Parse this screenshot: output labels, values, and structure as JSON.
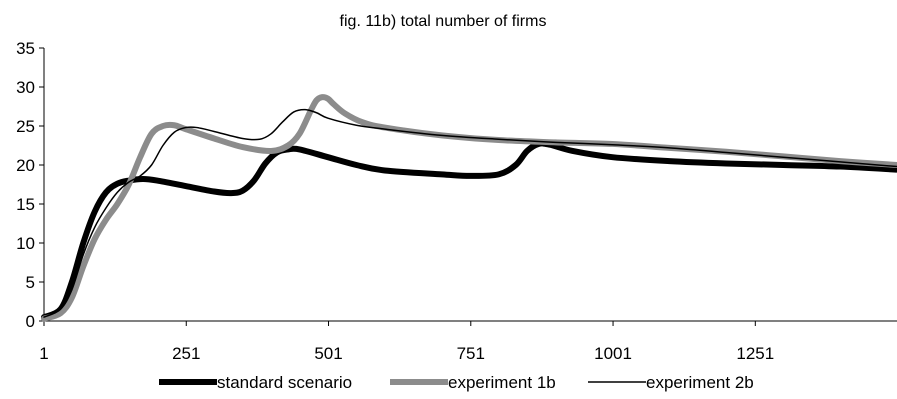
{
  "chart_data": {
    "type": "line",
    "title": "fig. 11b) total number of firms",
    "xlabel": "",
    "ylabel": "",
    "xlim": [
      1,
      1500
    ],
    "ylim": [
      0,
      35
    ],
    "x_ticks": [
      1,
      251,
      501,
      751,
      1001,
      1251
    ],
    "y_ticks": [
      0,
      5,
      10,
      15,
      20,
      25,
      30,
      35
    ],
    "grid": false,
    "legend_position": "bottom",
    "series": [
      {
        "name": "standard scenario",
        "color": "#000000",
        "x": [
          1,
          30,
          50,
          70,
          90,
          110,
          130,
          150,
          175,
          200,
          250,
          300,
          330,
          350,
          370,
          390,
          410,
          430,
          450,
          500,
          550,
          600,
          700,
          750,
          800,
          830,
          850,
          870,
          890,
          930,
          1000,
          1100,
          1200,
          1300,
          1400,
          1500
        ],
        "values": [
          0.5,
          1.5,
          5,
          10,
          14,
          16.5,
          17.6,
          18,
          18.2,
          18,
          17.3,
          16.6,
          16.4,
          16.7,
          18,
          20.2,
          21.6,
          22,
          22,
          21,
          20,
          19.3,
          18.8,
          18.6,
          18.8,
          20,
          21.8,
          22.7,
          22.6,
          21.8,
          21,
          20.5,
          20.2,
          20,
          19.8,
          19.4
        ]
      },
      {
        "name": "experiment 1b",
        "color": "#8c8c8c",
        "x": [
          1,
          30,
          50,
          70,
          90,
          110,
          130,
          150,
          170,
          190,
          210,
          230,
          250,
          300,
          350,
          400,
          430,
          450,
          470,
          480,
          490,
          500,
          510,
          530,
          560,
          600,
          700,
          800,
          900,
          1000,
          1100,
          1200,
          1300,
          1400,
          1500
        ],
        "values": [
          0.3,
          1,
          3,
          7,
          10.5,
          13,
          15,
          17.5,
          21,
          24,
          25,
          25.1,
          24.6,
          23.4,
          22.3,
          21.8,
          22.5,
          24,
          27,
          28.3,
          28.7,
          28.5,
          27.8,
          26.6,
          25.5,
          24.8,
          23.8,
          23.2,
          22.9,
          22.7,
          22.2,
          21.7,
          21.1,
          20.5,
          20
        ]
      },
      {
        "name": "experiment 2b",
        "color": "#000000",
        "x": [
          1,
          30,
          50,
          70,
          90,
          110,
          130,
          150,
          170,
          190,
          210,
          230,
          250,
          270,
          300,
          350,
          380,
          400,
          420,
          440,
          460,
          480,
          500,
          550,
          600,
          700,
          800,
          900,
          1000,
          1100,
          1200,
          1300,
          1400,
          1500
        ],
        "values": [
          0.5,
          1.5,
          4,
          8.5,
          12,
          14.5,
          16.5,
          17.8,
          18.6,
          20,
          22.5,
          24.2,
          24.8,
          24.8,
          24.3,
          23.4,
          23.3,
          24,
          25.5,
          26.8,
          27.1,
          26.7,
          26,
          25.1,
          24.6,
          23.8,
          23.3,
          22.9,
          22.6,
          22.2,
          21.6,
          21,
          20.4,
          19.8
        ]
      }
    ]
  }
}
